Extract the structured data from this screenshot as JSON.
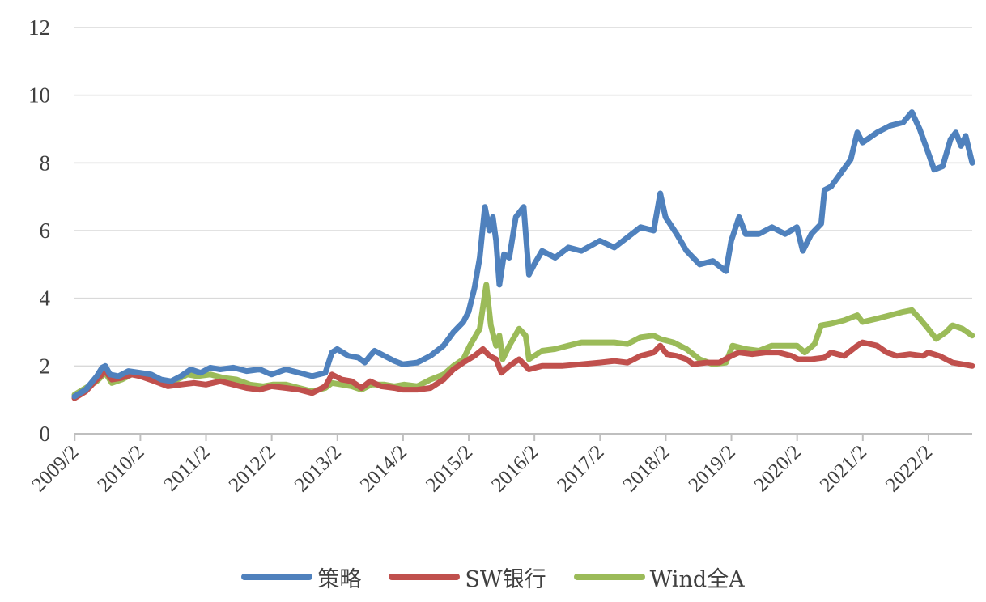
{
  "chart_data": {
    "type": "line",
    "title": "",
    "xlabel": "",
    "ylabel": "",
    "ylim": [
      0,
      12
    ],
    "yticks": [
      "0",
      "2",
      "4",
      "6",
      "8",
      "10",
      "12"
    ],
    "xlim": [
      2009.08,
      2022.75
    ],
    "xticks": [
      "2009/2",
      "2010/2",
      "2011/2",
      "2012/2",
      "2013/2",
      "2014/2",
      "2015/2",
      "2016/2",
      "2017/2",
      "2018/2",
      "2019/2",
      "2020/2",
      "2021/2",
      "2022/2"
    ],
    "grid": true,
    "legend_position": "bottom",
    "series": [
      {
        "name": "策略",
        "color": "#4f81bd",
        "points": [
          [
            2009.08,
            1.1
          ],
          [
            2009.25,
            1.3
          ],
          [
            2009.42,
            1.7
          ],
          [
            2009.5,
            1.95
          ],
          [
            2009.55,
            2.0
          ],
          [
            2009.62,
            1.75
          ],
          [
            2009.75,
            1.7
          ],
          [
            2009.9,
            1.85
          ],
          [
            2010.08,
            1.8
          ],
          [
            2010.25,
            1.75
          ],
          [
            2010.4,
            1.6
          ],
          [
            2010.55,
            1.55
          ],
          [
            2010.7,
            1.7
          ],
          [
            2010.85,
            1.9
          ],
          [
            2011.0,
            1.8
          ],
          [
            2011.15,
            1.95
          ],
          [
            2011.3,
            1.9
          ],
          [
            2011.5,
            1.95
          ],
          [
            2011.7,
            1.85
          ],
          [
            2011.9,
            1.9
          ],
          [
            2012.08,
            1.75
          ],
          [
            2012.3,
            1.9
          ],
          [
            2012.5,
            1.8
          ],
          [
            2012.7,
            1.7
          ],
          [
            2012.9,
            1.8
          ],
          [
            2013.0,
            2.4
          ],
          [
            2013.08,
            2.5
          ],
          [
            2013.25,
            2.3
          ],
          [
            2013.4,
            2.25
          ],
          [
            2013.5,
            2.1
          ],
          [
            2013.58,
            2.3
          ],
          [
            2013.65,
            2.45
          ],
          [
            2013.8,
            2.3
          ],
          [
            2013.95,
            2.15
          ],
          [
            2014.08,
            2.05
          ],
          [
            2014.3,
            2.1
          ],
          [
            2014.5,
            2.3
          ],
          [
            2014.7,
            2.6
          ],
          [
            2014.85,
            3.0
          ],
          [
            2015.0,
            3.3
          ],
          [
            2015.08,
            3.6
          ],
          [
            2015.17,
            4.3
          ],
          [
            2015.25,
            5.2
          ],
          [
            2015.33,
            6.7
          ],
          [
            2015.4,
            6.0
          ],
          [
            2015.45,
            6.4
          ],
          [
            2015.5,
            5.7
          ],
          [
            2015.55,
            4.4
          ],
          [
            2015.62,
            5.3
          ],
          [
            2015.7,
            5.2
          ],
          [
            2015.8,
            6.4
          ],
          [
            2015.92,
            6.7
          ],
          [
            2016.0,
            4.7
          ],
          [
            2016.08,
            5.0
          ],
          [
            2016.2,
            5.4
          ],
          [
            2016.4,
            5.2
          ],
          [
            2016.6,
            5.5
          ],
          [
            2016.8,
            5.4
          ],
          [
            2017.08,
            5.7
          ],
          [
            2017.3,
            5.5
          ],
          [
            2017.5,
            5.8
          ],
          [
            2017.7,
            6.1
          ],
          [
            2017.9,
            6.0
          ],
          [
            2018.0,
            7.1
          ],
          [
            2018.08,
            6.4
          ],
          [
            2018.25,
            5.9
          ],
          [
            2018.4,
            5.4
          ],
          [
            2018.6,
            5.0
          ],
          [
            2018.8,
            5.1
          ],
          [
            2019.0,
            4.8
          ],
          [
            2019.08,
            5.7
          ],
          [
            2019.2,
            6.4
          ],
          [
            2019.3,
            5.9
          ],
          [
            2019.5,
            5.9
          ],
          [
            2019.7,
            6.1
          ],
          [
            2019.9,
            5.9
          ],
          [
            2020.08,
            6.1
          ],
          [
            2020.17,
            5.4
          ],
          [
            2020.3,
            5.9
          ],
          [
            2020.45,
            6.2
          ],
          [
            2020.5,
            7.2
          ],
          [
            2020.6,
            7.3
          ],
          [
            2020.75,
            7.7
          ],
          [
            2020.9,
            8.1
          ],
          [
            2021.0,
            8.9
          ],
          [
            2021.08,
            8.6
          ],
          [
            2021.3,
            8.9
          ],
          [
            2021.5,
            9.1
          ],
          [
            2021.7,
            9.2
          ],
          [
            2021.83,
            9.5
          ],
          [
            2021.95,
            9.0
          ],
          [
            2022.08,
            8.3
          ],
          [
            2022.17,
            7.8
          ],
          [
            2022.3,
            7.9
          ],
          [
            2022.42,
            8.7
          ],
          [
            2022.5,
            8.9
          ],
          [
            2022.58,
            8.5
          ],
          [
            2022.65,
            8.8
          ],
          [
            2022.7,
            8.4
          ],
          [
            2022.75,
            8.0
          ]
        ]
      },
      {
        "name": "SW银行",
        "color": "#c0504d",
        "points": [
          [
            2009.08,
            1.05
          ],
          [
            2009.25,
            1.25
          ],
          [
            2009.42,
            1.6
          ],
          [
            2009.55,
            1.85
          ],
          [
            2009.65,
            1.6
          ],
          [
            2009.8,
            1.65
          ],
          [
            2009.95,
            1.75
          ],
          [
            2010.08,
            1.7
          ],
          [
            2010.3,
            1.55
          ],
          [
            2010.5,
            1.4
          ],
          [
            2010.7,
            1.45
          ],
          [
            2010.9,
            1.5
          ],
          [
            2011.08,
            1.45
          ],
          [
            2011.3,
            1.55
          ],
          [
            2011.5,
            1.45
          ],
          [
            2011.7,
            1.35
          ],
          [
            2011.9,
            1.3
          ],
          [
            2012.08,
            1.4
          ],
          [
            2012.3,
            1.35
          ],
          [
            2012.5,
            1.3
          ],
          [
            2012.7,
            1.2
          ],
          [
            2012.9,
            1.4
          ],
          [
            2013.0,
            1.75
          ],
          [
            2013.15,
            1.6
          ],
          [
            2013.3,
            1.55
          ],
          [
            2013.45,
            1.35
          ],
          [
            2013.58,
            1.55
          ],
          [
            2013.75,
            1.4
          ],
          [
            2013.95,
            1.35
          ],
          [
            2014.08,
            1.3
          ],
          [
            2014.3,
            1.3
          ],
          [
            2014.5,
            1.35
          ],
          [
            2014.7,
            1.6
          ],
          [
            2014.85,
            1.9
          ],
          [
            2015.0,
            2.1
          ],
          [
            2015.17,
            2.3
          ],
          [
            2015.3,
            2.5
          ],
          [
            2015.4,
            2.3
          ],
          [
            2015.5,
            2.2
          ],
          [
            2015.58,
            1.8
          ],
          [
            2015.7,
            2.0
          ],
          [
            2015.85,
            2.2
          ],
          [
            2016.0,
            1.9
          ],
          [
            2016.2,
            2.0
          ],
          [
            2016.5,
            2.0
          ],
          [
            2016.8,
            2.05
          ],
          [
            2017.08,
            2.1
          ],
          [
            2017.3,
            2.15
          ],
          [
            2017.5,
            2.1
          ],
          [
            2017.7,
            2.3
          ],
          [
            2017.9,
            2.4
          ],
          [
            2018.0,
            2.6
          ],
          [
            2018.1,
            2.35
          ],
          [
            2018.25,
            2.3
          ],
          [
            2018.4,
            2.2
          ],
          [
            2018.5,
            2.05
          ],
          [
            2018.7,
            2.1
          ],
          [
            2018.9,
            2.1
          ],
          [
            2019.08,
            2.3
          ],
          [
            2019.2,
            2.4
          ],
          [
            2019.4,
            2.35
          ],
          [
            2019.6,
            2.4
          ],
          [
            2019.8,
            2.4
          ],
          [
            2020.0,
            2.3
          ],
          [
            2020.1,
            2.2
          ],
          [
            2020.3,
            2.2
          ],
          [
            2020.5,
            2.25
          ],
          [
            2020.6,
            2.4
          ],
          [
            2020.8,
            2.3
          ],
          [
            2021.0,
            2.6
          ],
          [
            2021.08,
            2.7
          ],
          [
            2021.3,
            2.6
          ],
          [
            2021.45,
            2.4
          ],
          [
            2021.6,
            2.3
          ],
          [
            2021.8,
            2.35
          ],
          [
            2022.0,
            2.3
          ],
          [
            2022.08,
            2.4
          ],
          [
            2022.25,
            2.3
          ],
          [
            2022.45,
            2.1
          ],
          [
            2022.6,
            2.05
          ],
          [
            2022.75,
            2.0
          ]
        ]
      },
      {
        "name": "Wind全A",
        "color": "#9bbb59",
        "points": [
          [
            2009.08,
            1.15
          ],
          [
            2009.25,
            1.35
          ],
          [
            2009.42,
            1.55
          ],
          [
            2009.55,
            1.8
          ],
          [
            2009.65,
            1.5
          ],
          [
            2009.8,
            1.6
          ],
          [
            2009.95,
            1.75
          ],
          [
            2010.08,
            1.75
          ],
          [
            2010.3,
            1.6
          ],
          [
            2010.45,
            1.45
          ],
          [
            2010.6,
            1.55
          ],
          [
            2010.8,
            1.75
          ],
          [
            2010.95,
            1.7
          ],
          [
            2011.15,
            1.75
          ],
          [
            2011.35,
            1.65
          ],
          [
            2011.55,
            1.6
          ],
          [
            2011.75,
            1.45
          ],
          [
            2011.95,
            1.4
          ],
          [
            2012.1,
            1.45
          ],
          [
            2012.3,
            1.45
          ],
          [
            2012.5,
            1.35
          ],
          [
            2012.7,
            1.25
          ],
          [
            2012.9,
            1.35
          ],
          [
            2013.0,
            1.5
          ],
          [
            2013.15,
            1.45
          ],
          [
            2013.3,
            1.4
          ],
          [
            2013.45,
            1.3
          ],
          [
            2013.6,
            1.45
          ],
          [
            2013.8,
            1.45
          ],
          [
            2013.95,
            1.4
          ],
          [
            2014.1,
            1.45
          ],
          [
            2014.3,
            1.4
          ],
          [
            2014.5,
            1.6
          ],
          [
            2014.7,
            1.75
          ],
          [
            2014.85,
            2.0
          ],
          [
            2015.0,
            2.2
          ],
          [
            2015.1,
            2.6
          ],
          [
            2015.25,
            3.1
          ],
          [
            2015.35,
            4.4
          ],
          [
            2015.42,
            3.2
          ],
          [
            2015.5,
            2.6
          ],
          [
            2015.55,
            2.9
          ],
          [
            2015.6,
            2.2
          ],
          [
            2015.7,
            2.6
          ],
          [
            2015.85,
            3.1
          ],
          [
            2015.95,
            2.9
          ],
          [
            2016.0,
            2.2
          ],
          [
            2016.2,
            2.45
          ],
          [
            2016.4,
            2.5
          ],
          [
            2016.6,
            2.6
          ],
          [
            2016.8,
            2.7
          ],
          [
            2017.08,
            2.7
          ],
          [
            2017.3,
            2.7
          ],
          [
            2017.5,
            2.65
          ],
          [
            2017.7,
            2.85
          ],
          [
            2017.9,
            2.9
          ],
          [
            2018.0,
            2.8
          ],
          [
            2018.2,
            2.7
          ],
          [
            2018.4,
            2.5
          ],
          [
            2018.6,
            2.2
          ],
          [
            2018.8,
            2.05
          ],
          [
            2019.0,
            2.1
          ],
          [
            2019.1,
            2.6
          ],
          [
            2019.3,
            2.5
          ],
          [
            2019.5,
            2.45
          ],
          [
            2019.7,
            2.6
          ],
          [
            2019.9,
            2.6
          ],
          [
            2020.08,
            2.6
          ],
          [
            2020.2,
            2.4
          ],
          [
            2020.35,
            2.65
          ],
          [
            2020.45,
            3.2
          ],
          [
            2020.6,
            3.25
          ],
          [
            2020.8,
            3.35
          ],
          [
            2021.0,
            3.5
          ],
          [
            2021.08,
            3.3
          ],
          [
            2021.3,
            3.4
          ],
          [
            2021.5,
            3.5
          ],
          [
            2021.7,
            3.6
          ],
          [
            2021.83,
            3.65
          ],
          [
            2021.95,
            3.4
          ],
          [
            2022.08,
            3.1
          ],
          [
            2022.2,
            2.8
          ],
          [
            2022.35,
            3.0
          ],
          [
            2022.45,
            3.2
          ],
          [
            2022.6,
            3.1
          ],
          [
            2022.75,
            2.9
          ]
        ]
      }
    ]
  }
}
